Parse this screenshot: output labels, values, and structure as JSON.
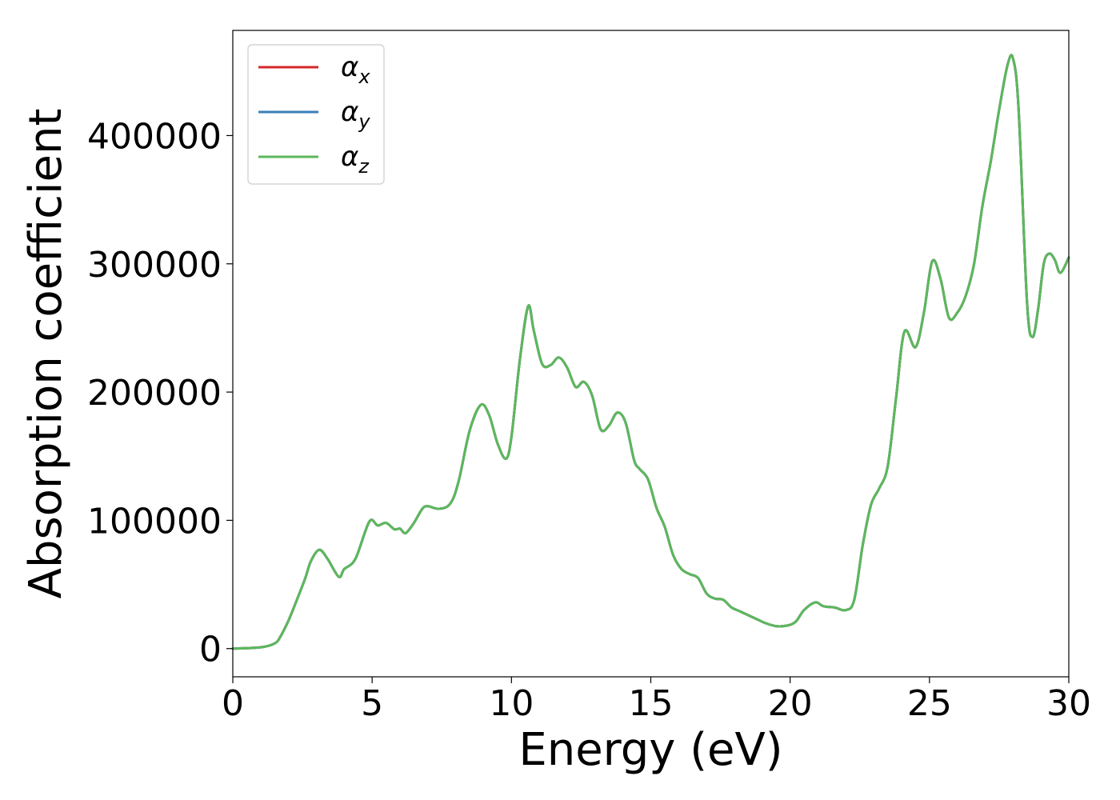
{
  "chart_data": {
    "type": "line",
    "title": "",
    "xlabel": "Energy (eV)",
    "ylabel": "Absorption coefficient",
    "xlim": [
      0,
      30
    ],
    "ylim": [
      -22000,
      482000
    ],
    "xticks": [
      0,
      5,
      10,
      15,
      20,
      25,
      30
    ],
    "xtick_labels": [
      "0",
      "5",
      "10",
      "15",
      "20",
      "25",
      "30"
    ],
    "yticks": [
      0,
      100000,
      200000,
      300000,
      400000
    ],
    "ytick_labels": [
      "0",
      "100000",
      "200000",
      "300000",
      "400000"
    ],
    "grid": false,
    "legend_position": "top-left",
    "x": [
      0,
      1,
      1.5,
      1.7,
      2.0,
      2.3,
      2.6,
      2.8,
      3.1,
      3.4,
      3.8,
      4.0,
      4.4,
      4.9,
      5.2,
      5.5,
      5.8,
      6.0,
      6.2,
      6.5,
      6.8,
      7.0,
      7.4,
      7.8,
      8.1,
      8.5,
      8.9,
      9.2,
      9.5,
      9.8,
      10.0,
      10.3,
      10.6,
      10.8,
      11.1,
      11.4,
      11.7,
      12.0,
      12.3,
      12.6,
      12.9,
      13.2,
      13.5,
      13.8,
      14.1,
      14.4,
      14.6,
      14.9,
      15.2,
      15.5,
      15.8,
      16.1,
      16.4,
      16.7,
      17.0,
      17.3,
      17.6,
      17.9,
      18.2,
      18.5,
      18.8,
      19.1,
      19.5,
      19.9,
      20.2,
      20.5,
      20.9,
      21.2,
      21.6,
      22.0,
      22.3,
      22.6,
      22.9,
      23.2,
      23.5,
      23.8,
      24.1,
      24.5,
      24.8,
      25.1,
      25.4,
      25.7,
      26.0,
      26.3,
      26.6,
      26.9,
      27.2,
      27.5,
      27.8,
      28.0,
      28.2,
      28.5,
      28.7,
      28.9,
      29.1,
      29.3,
      29.5,
      29.7,
      30.0
    ],
    "series": [
      {
        "name": "α",
        "subscript": "x",
        "color": "#d62728",
        "values": [
          0,
          1000,
          4000,
          9000,
          22000,
          38000,
          55000,
          68000,
          77000,
          70000,
          56000,
          62000,
          70000,
          99000,
          96000,
          98000,
          93000,
          93500,
          90000,
          98000,
          109000,
          111000,
          109000,
          113000,
          130000,
          170000,
          190000,
          182000,
          160000,
          148000,
          165000,
          225000,
          267000,
          248000,
          222000,
          221000,
          227000,
          219000,
          204000,
          208000,
          197000,
          171000,
          174000,
          184000,
          176000,
          147000,
          140000,
          132000,
          110000,
          95000,
          73000,
          62000,
          58000,
          55000,
          43000,
          39000,
          38000,
          32000,
          29000,
          26000,
          23000,
          20000,
          17500,
          18000,
          21000,
          30000,
          36000,
          33000,
          32000,
          30000,
          38000,
          80000,
          112000,
          125000,
          142000,
          195000,
          247000,
          235000,
          262000,
          302000,
          288000,
          258000,
          262000,
          275000,
          300000,
          345000,
          380000,
          420000,
          455000,
          460000,
          420000,
          270000,
          243000,
          265000,
          300000,
          308000,
          303000,
          293000,
          305000
        ]
      },
      {
        "name": "α",
        "subscript": "y",
        "color": "#3a7fb8",
        "values": [
          0,
          1000,
          4000,
          9000,
          22000,
          38000,
          55000,
          68000,
          77000,
          70000,
          56000,
          62000,
          70000,
          99000,
          96000,
          98000,
          93000,
          93500,
          90000,
          98000,
          109000,
          111000,
          109000,
          113000,
          130000,
          170000,
          190000,
          182000,
          160000,
          148000,
          165000,
          225000,
          267000,
          248000,
          222000,
          221000,
          227000,
          219000,
          204000,
          208000,
          197000,
          171000,
          174000,
          184000,
          176000,
          147000,
          140000,
          132000,
          110000,
          95000,
          73000,
          62000,
          58000,
          55000,
          43000,
          39000,
          38000,
          32000,
          29000,
          26000,
          23000,
          20000,
          17500,
          18000,
          21000,
          30000,
          36000,
          33000,
          32000,
          30000,
          38000,
          80000,
          112000,
          125000,
          142000,
          195000,
          247000,
          235000,
          262000,
          302000,
          288000,
          258000,
          262000,
          275000,
          300000,
          345000,
          380000,
          420000,
          455000,
          460000,
          420000,
          270000,
          243000,
          265000,
          300000,
          308000,
          303000,
          293000,
          305000
        ]
      },
      {
        "name": "α",
        "subscript": "z",
        "color": "#5cb85c",
        "values": [
          0,
          1000,
          4000,
          9000,
          22000,
          38000,
          55000,
          68000,
          77000,
          70000,
          56000,
          62000,
          70000,
          99000,
          96000,
          98000,
          93000,
          93500,
          90000,
          98000,
          109000,
          111000,
          109000,
          113000,
          130000,
          170000,
          190000,
          182000,
          160000,
          148000,
          165000,
          225000,
          267000,
          248000,
          222000,
          221000,
          227000,
          219000,
          204000,
          208000,
          197000,
          171000,
          174000,
          184000,
          176000,
          147000,
          140000,
          132000,
          110000,
          95000,
          73000,
          62000,
          58000,
          55000,
          43000,
          39000,
          38000,
          32000,
          29000,
          26000,
          23000,
          20000,
          17500,
          18000,
          21000,
          30000,
          36000,
          33000,
          32000,
          30000,
          38000,
          80000,
          112000,
          125000,
          142000,
          195000,
          247000,
          235000,
          262000,
          302000,
          288000,
          258000,
          262000,
          275000,
          300000,
          345000,
          380000,
          420000,
          455000,
          460000,
          420000,
          270000,
          243000,
          265000,
          300000,
          308000,
          303000,
          293000,
          305000
        ]
      }
    ]
  }
}
